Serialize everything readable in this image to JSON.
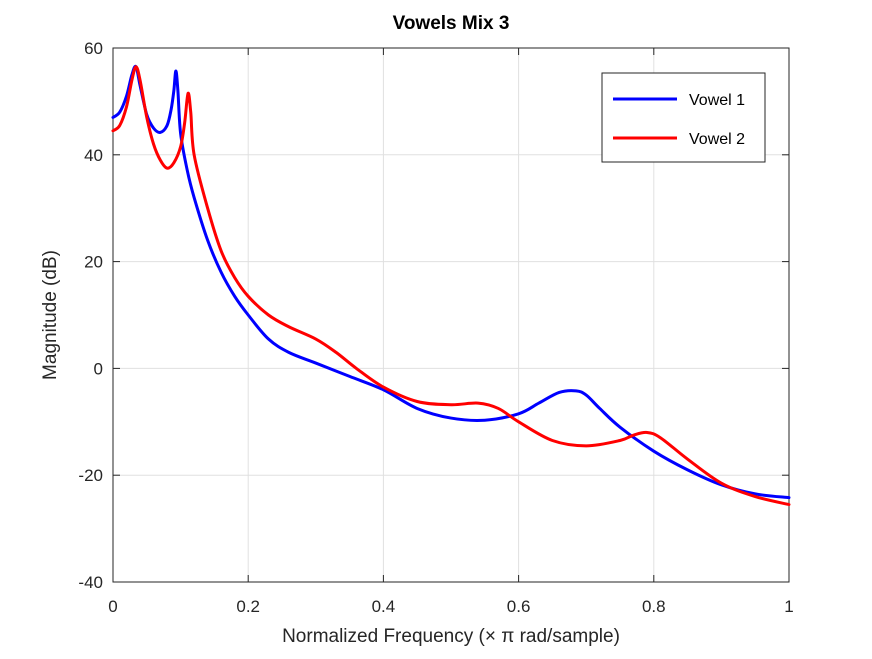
{
  "chart_data": {
    "type": "line",
    "title": "Vowels Mix 3",
    "xlabel": "Normalized Frequency (× π rad/sample)",
    "ylabel": "Magnitude (dB)",
    "xlim": [
      0,
      1
    ],
    "ylim": [
      -40,
      60
    ],
    "xticks": [
      0,
      0.2,
      0.4,
      0.6,
      0.8,
      1
    ],
    "xtick_labels": [
      "0",
      "0.2",
      "0.4",
      "0.6",
      "0.8",
      "1"
    ],
    "yticks": [
      -40,
      -20,
      0,
      20,
      40,
      60
    ],
    "ytick_labels": [
      "-40",
      "-20",
      "0",
      "20",
      "40",
      "60"
    ],
    "grid": true,
    "legend_position": "top-right",
    "series": [
      {
        "name": "Vowel 1",
        "color": "#0000ff",
        "x": [
          0,
          0.01,
          0.02,
          0.028,
          0.034,
          0.04,
          0.05,
          0.06,
          0.07,
          0.08,
          0.086,
          0.09,
          0.093,
          0.096,
          0.1,
          0.11,
          0.12,
          0.14,
          0.16,
          0.18,
          0.2,
          0.23,
          0.26,
          0.3,
          0.35,
          0.4,
          0.45,
          0.5,
          0.55,
          0.6,
          0.63,
          0.66,
          0.685,
          0.7,
          0.72,
          0.75,
          0.8,
          0.85,
          0.9,
          0.95,
          1
        ],
        "y": [
          47,
          48,
          51,
          55,
          56.5,
          53,
          47.5,
          45,
          44.2,
          45.5,
          48.5,
          52,
          55.7,
          52,
          44,
          37,
          32,
          24,
          18,
          13.5,
          10,
          5.5,
          3,
          1,
          -1.5,
          -4,
          -7.5,
          -9.3,
          -9.7,
          -8.5,
          -6.5,
          -4.5,
          -4.2,
          -5,
          -7.5,
          -11,
          -15.5,
          -19,
          -21.8,
          -23.5,
          -24.2
        ]
      },
      {
        "name": "Vowel 2",
        "color": "#ff0000",
        "x": [
          0,
          0.01,
          0.02,
          0.028,
          0.034,
          0.04,
          0.05,
          0.06,
          0.07,
          0.08,
          0.09,
          0.1,
          0.106,
          0.111,
          0.115,
          0.12,
          0.14,
          0.16,
          0.18,
          0.2,
          0.23,
          0.26,
          0.3,
          0.33,
          0.36,
          0.4,
          0.45,
          0.5,
          0.54,
          0.57,
          0.6,
          0.65,
          0.7,
          0.75,
          0.77,
          0.79,
          0.81,
          0.85,
          0.9,
          0.95,
          1
        ],
        "y": [
          44.5,
          45.5,
          49,
          54,
          56.5,
          54,
          47,
          42,
          39,
          37.5,
          38.5,
          41.5,
          46,
          51.5,
          48,
          40,
          30,
          22,
          17,
          13.5,
          10,
          7.8,
          5.5,
          3,
          0,
          -3.5,
          -6.2,
          -6.8,
          -6.5,
          -7.5,
          -10,
          -13.5,
          -14.5,
          -13.5,
          -12.5,
          -12,
          -13,
          -17,
          -21.5,
          -24,
          -25.5
        ]
      }
    ]
  }
}
